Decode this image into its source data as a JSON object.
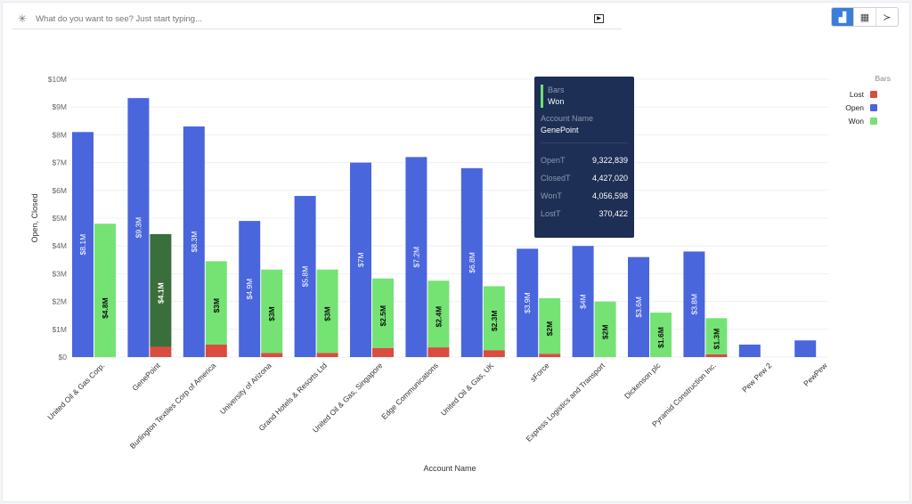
{
  "search": {
    "placeholder": "What do you want to see? Just start typing...",
    "icon": "sparkle-icon",
    "run_icon": "play-icon"
  },
  "view_toggle": [
    {
      "icon": "bar-chart-icon",
      "active": true
    },
    {
      "icon": "table-icon",
      "active": false
    },
    {
      "icon": "terminal-icon",
      "active": false
    }
  ],
  "colors": {
    "open": "#4a66dd",
    "won": "#74e374",
    "won_hover": "#3a6e3a",
    "lost": "#db4b3e"
  },
  "tooltip": {
    "series_label": "Bars",
    "series": "Won",
    "field_label": "Account Name",
    "field_value": "GenePoint",
    "rows": [
      {
        "k": "OpenT",
        "v": "9,322,839"
      },
      {
        "k": "ClosedT",
        "v": "4,427,020"
      },
      {
        "k": "WonT",
        "v": "4,056,598"
      },
      {
        "k": "LostT",
        "v": "370,422"
      }
    ]
  },
  "chart_data": {
    "type": "bar",
    "xlabel": "Account Name",
    "ylabel": "Open, Closed",
    "ylim": [
      0,
      10000000
    ],
    "grid": true,
    "yticks": [
      "$0",
      "$1M",
      "$2M",
      "$3M",
      "$4M",
      "$5M",
      "$6M",
      "$7M",
      "$8M",
      "$9M",
      "$10M"
    ],
    "legend": {
      "title": "Bars",
      "position": "top-right",
      "entries": [
        "Lost",
        "Open",
        "Won"
      ]
    },
    "categories": [
      "United Oil & Gas Corp.",
      "GenePoint",
      "Burlington Textiles Corp of America",
      "University of Arizona",
      "Grand Hotels & Resorts Ltd",
      "United Oil & Gas, Singapore",
      "Edge Communications",
      "United Oil & Gas, UK",
      "sForce",
      "Express Logistics and Transport",
      "Dickenson plc",
      "Pyramid Construction Inc.",
      "Pew Pew 2",
      "PewPew"
    ],
    "series": [
      {
        "name": "Open",
        "values": [
          8100000,
          9322839,
          8300000,
          4900000,
          5800000,
          7000000,
          7200000,
          6800000,
          3900000,
          4000000,
          3600000,
          3800000,
          450000,
          600000
        ],
        "labels": [
          "$8.1M",
          "$9.3M",
          "$8.3M",
          "$4.9M",
          "$5.8M",
          "$7M",
          "$7.2M",
          "$6.8M",
          "$3.9M",
          "$4M",
          "$3.6M",
          "$3.8M",
          "",
          ""
        ]
      },
      {
        "name": "Won",
        "values": [
          4800000,
          4056598,
          3000000,
          3000000,
          3000000,
          2500000,
          2400000,
          2300000,
          2000000,
          2000000,
          1600000,
          1300000,
          0,
          0
        ],
        "labels": [
          "$4.8M",
          "$4.1M",
          "$3M",
          "$3M",
          "$3M",
          "$2.5M",
          "$2.4M",
          "$2.3M",
          "$2M",
          "$2M",
          "$1.6M",
          "$1.3M",
          "",
          ""
        ]
      },
      {
        "name": "Lost",
        "values": [
          0,
          370422,
          450000,
          150000,
          150000,
          330000,
          350000,
          250000,
          120000,
          0,
          0,
          100000,
          0,
          0
        ]
      }
    ],
    "highlighted": {
      "category": "GenePoint",
      "series": "Won"
    }
  }
}
